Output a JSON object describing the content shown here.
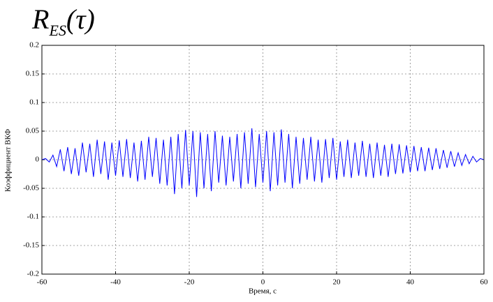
{
  "chart_data": {
    "type": "line",
    "title": "R",
    "title_subscript": "ES",
    "title_suffix": "(τ)",
    "x_label": "Время, с",
    "y_label": "Коэффициент ВКФ",
    "xlim": [
      -60,
      60
    ],
    "ylim": [
      -0.2,
      0.2
    ],
    "xticks": [
      -60,
      -40,
      -20,
      0,
      20,
      40,
      60
    ],
    "yticks": [
      -0.2,
      -0.15,
      -0.1,
      -0.05,
      0,
      0.05,
      0.1,
      0.15,
      0.2
    ],
    "grid": true,
    "x": [
      -60,
      -59,
      -58,
      -57,
      -56,
      -55,
      -54,
      -53,
      -52,
      -51,
      -50,
      -49,
      -48,
      -47,
      -46,
      -45,
      -44,
      -43,
      -42,
      -41,
      -40,
      -39,
      -38,
      -37,
      -36,
      -35,
      -34,
      -33,
      -32,
      -31,
      -30,
      -29,
      -28,
      -27,
      -26,
      -25,
      -24,
      -23,
      -22,
      -21,
      -20,
      -19,
      -18,
      -17,
      -16,
      -15,
      -14,
      -13,
      -12,
      -11,
      -10,
      -9,
      -8,
      -7,
      -6,
      -5,
      -4,
      -3,
      -2,
      -1,
      0,
      1,
      2,
      3,
      4,
      5,
      6,
      7,
      8,
      9,
      10,
      11,
      12,
      13,
      14,
      15,
      16,
      17,
      18,
      19,
      20,
      21,
      22,
      23,
      24,
      25,
      26,
      27,
      28,
      29,
      30,
      31,
      32,
      33,
      34,
      35,
      36,
      37,
      38,
      39,
      40,
      41,
      42,
      43,
      44,
      45,
      46,
      47,
      48,
      49,
      50,
      51,
      52,
      53,
      54,
      55,
      56,
      57,
      58,
      59,
      60
    ],
    "series": [
      {
        "color": "#0000ff",
        "values": [
          0,
          0.002,
          -0.004,
          0.008,
          -0.012,
          0.018,
          -0.02,
          0.022,
          -0.025,
          0.02,
          -0.028,
          0.03,
          -0.022,
          0.028,
          -0.03,
          0.035,
          -0.025,
          0.032,
          -0.035,
          0.03,
          -0.028,
          0.034,
          -0.03,
          0.036,
          -0.032,
          0.03,
          -0.038,
          0.033,
          -0.035,
          0.04,
          -0.03,
          0.038,
          -0.042,
          0.035,
          -0.045,
          0.04,
          -0.06,
          0.045,
          -0.05,
          0.052,
          -0.045,
          0.05,
          -0.065,
          0.048,
          -0.05,
          0.045,
          -0.055,
          0.05,
          -0.04,
          0.042,
          -0.045,
          0.04,
          -0.038,
          0.045,
          -0.05,
          0.048,
          -0.042,
          0.055,
          -0.048,
          0.045,
          -0.04,
          0.05,
          -0.055,
          0.048,
          -0.045,
          0.053,
          -0.04,
          0.045,
          -0.05,
          0.04,
          -0.042,
          0.038,
          -0.035,
          0.04,
          -0.038,
          0.035,
          -0.04,
          0.036,
          -0.032,
          0.038,
          -0.035,
          0.032,
          -0.03,
          0.035,
          -0.032,
          0.03,
          -0.028,
          0.033,
          -0.03,
          0.028,
          -0.032,
          0.03,
          -0.028,
          0.026,
          -0.03,
          0.028,
          -0.025,
          0.027,
          -0.024,
          0.025,
          -0.022,
          0.024,
          -0.02,
          0.022,
          -0.02,
          0.021,
          -0.018,
          0.02,
          -0.016,
          0.017,
          -0.014,
          0.015,
          -0.012,
          0.012,
          -0.01,
          0.009,
          -0.007,
          0.006,
          -0.004,
          0.002,
          0
        ]
      }
    ]
  }
}
